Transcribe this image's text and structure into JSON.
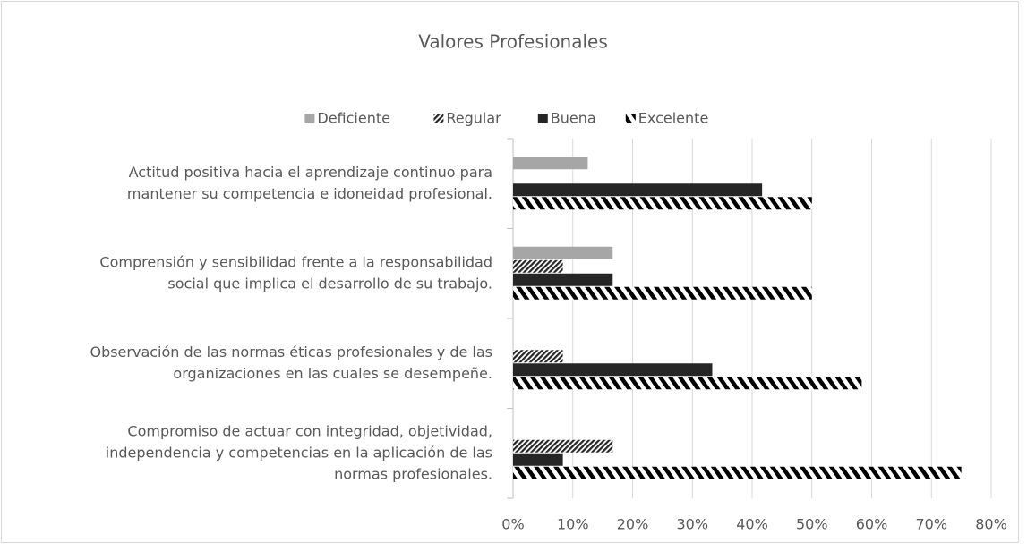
{
  "chart_data": {
    "type": "bar",
    "orientation": "horizontal",
    "title": "Valores Profesionales",
    "categories": [
      [
        "Actitud positiva hacia el aprendizaje continuo para",
        "mantener su competencia e idoneidad profesional."
      ],
      [
        "Comprensión y sensibilidad frente a la responsabilidad",
        "social que implica el desarrollo de su trabajo."
      ],
      [
        "Observación de las normas éticas profesionales y de las",
        "organizaciones en las cuales se desempeñe."
      ],
      [
        "Compromiso de actuar con integridad, objetividad,",
        "independencia y competencias en la aplicación de las",
        "normas profesionales."
      ]
    ],
    "series": [
      {
        "name": "Deficiente",
        "color": "#a6a6a6",
        "pattern": "solid",
        "values": [
          12.5,
          16.67,
          0,
          0
        ]
      },
      {
        "name": "Regular",
        "color": "#262626",
        "pattern": "narrow-downward-diagonal",
        "values": [
          0,
          8.33,
          8.33,
          16.67
        ]
      },
      {
        "name": "Buena",
        "color": "#262626",
        "pattern": "solid",
        "values": [
          41.67,
          16.67,
          33.33,
          8.33
        ]
      },
      {
        "name": "Excelente",
        "color": "#000000",
        "pattern": "wide-upward-diagonal",
        "values": [
          50,
          50,
          58.33,
          75
        ]
      }
    ],
    "xlim": [
      0,
      80
    ],
    "xticks": [
      {
        "value": 0,
        "label": "0%"
      },
      {
        "value": 10,
        "label": "10%"
      },
      {
        "value": 20,
        "label": "20%"
      },
      {
        "value": 30,
        "label": "30%"
      },
      {
        "value": 40,
        "label": "40%"
      },
      {
        "value": 50,
        "label": "50%"
      },
      {
        "value": 60,
        "label": "60%"
      },
      {
        "value": 70,
        "label": "70%"
      },
      {
        "value": 80,
        "label": "80%"
      }
    ],
    "grid": true,
    "legend": "top"
  }
}
